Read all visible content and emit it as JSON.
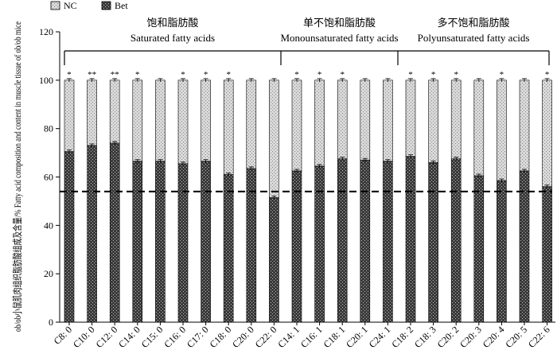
{
  "chart_data": {
    "type": "bar",
    "stacked": true,
    "ylabel": "ob/ob小鼠肌肉组织脂肪酸组成及含量/% Fatty acid composition and content in muscle tissue of ob/ob mice",
    "ylim": [
      0,
      120
    ],
    "yticks": [
      0,
      20,
      40,
      60,
      80,
      100,
      120
    ],
    "categories": [
      "C8: 0",
      "C10: 0",
      "C12: 0",
      "C14: 0",
      "C15: 0",
      "C16: 0",
      "C17: 0",
      "C18: 0",
      "C20: 0",
      "C22: 0",
      "C14: 1",
      "C16: 1",
      "C18: 1",
      "C20: 1",
      "C24: 1",
      "C18: 2",
      "C18: 3",
      "C20: 2",
      "C20: 3",
      "C20: 4",
      "C20: 5",
      "C22: 6"
    ],
    "series": [
      {
        "name": "Bet",
        "color": "#333333",
        "pattern": "dark-crosshatch",
        "values": [
          70.5,
          73,
          74,
          66.5,
          66.5,
          65.5,
          66.5,
          61,
          63.5,
          51.5,
          62.5,
          64.5,
          67.5,
          67,
          66.5,
          68.5,
          66,
          67.5,
          60.5,
          58.5,
          62.5,
          56
        ]
      },
      {
        "name": "NC",
        "color": "#c8c8c8",
        "pattern": "light-dots",
        "values": [
          29.5,
          27,
          26,
          33.5,
          33.5,
          34.5,
          33.5,
          39,
          36.5,
          48.5,
          37.5,
          35.5,
          32.5,
          33,
          33.5,
          31.5,
          34,
          32.5,
          39.5,
          41.5,
          37.5,
          44
        ]
      }
    ],
    "significance": [
      "*",
      "**",
      "**",
      "*",
      "",
      "*",
      "*",
      "*",
      "",
      "",
      "*",
      "*",
      "*",
      "",
      "",
      "*",
      "*",
      "*",
      "",
      "*",
      "",
      "*"
    ],
    "reference_line": 54,
    "groups": [
      {
        "label_cn": "饱和脂肪酸",
        "label_en": "Saturated fatty acids",
        "start": 0,
        "end": 9
      },
      {
        "label_cn": "单不饱和脂肪酸",
        "label_en": "Monounsaturated fatty acids",
        "start": 10,
        "end": 14
      },
      {
        "label_cn": "多不饱和脂肪酸",
        "label_en": "Polyunsaturated fatty acids",
        "start": 15,
        "end": 21
      }
    ],
    "legend": {
      "position": "top-left",
      "items": [
        "NC",
        "Bet"
      ]
    },
    "grid": false
  }
}
